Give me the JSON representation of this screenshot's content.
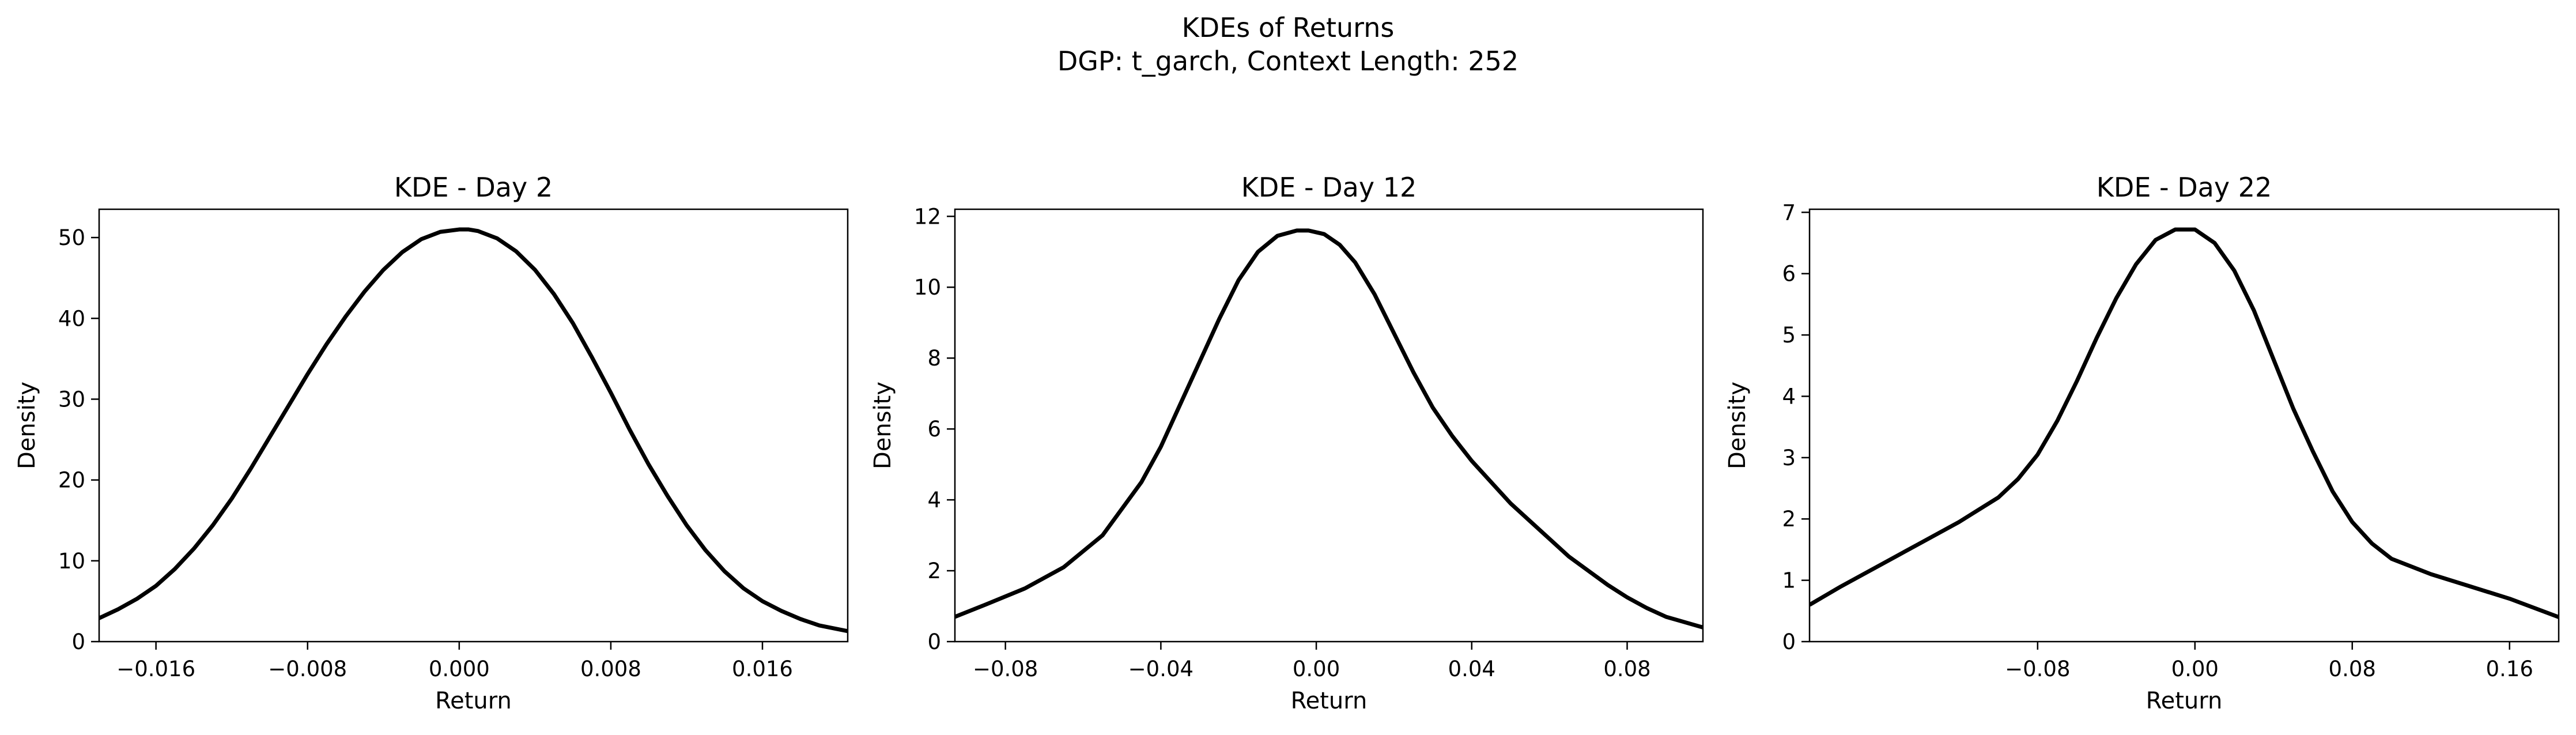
{
  "figure": {
    "title_line1": "KDEs of Returns",
    "title_line2": "DGP: t_garch, Context Length: 252"
  },
  "chart_data": [
    {
      "type": "line",
      "title": "KDE - Day 2",
      "xlabel": "Return",
      "ylabel": "Density",
      "xlim": [
        -0.019,
        0.0205
      ],
      "ylim": [
        0,
        53.5
      ],
      "xticks": [
        -0.016,
        -0.008,
        0.0,
        0.008,
        0.016
      ],
      "xtick_labels": [
        "−0.016",
        "−0.008",
        "0.000",
        "0.008",
        "0.016"
      ],
      "yticks": [
        0,
        10,
        20,
        30,
        40,
        50
      ],
      "ytick_labels": [
        "0",
        "10",
        "20",
        "30",
        "40",
        "50"
      ],
      "line_color": "#000000",
      "grid": false,
      "series": [
        {
          "x": [
            -0.019,
            -0.018,
            -0.017,
            -0.016,
            -0.015,
            -0.014,
            -0.013,
            -0.012,
            -0.011,
            -0.01,
            -0.009,
            -0.008,
            -0.007,
            -0.006,
            -0.005,
            -0.004,
            -0.003,
            -0.002,
            -0.001,
            0.0,
            0.0005,
            0.001,
            0.002,
            0.003,
            0.004,
            0.005,
            0.006,
            0.007,
            0.008,
            0.009,
            0.01,
            0.011,
            0.012,
            0.013,
            0.014,
            0.015,
            0.016,
            0.017,
            0.018,
            0.019,
            0.0205
          ],
          "y": [
            2.9,
            4.0,
            5.3,
            6.9,
            9.0,
            11.5,
            14.4,
            17.7,
            21.4,
            25.3,
            29.2,
            33.1,
            36.8,
            40.2,
            43.3,
            46.0,
            48.2,
            49.8,
            50.7,
            51.0,
            51.0,
            50.8,
            49.9,
            48.3,
            46.0,
            43.0,
            39.4,
            35.2,
            30.8,
            26.2,
            21.9,
            18.0,
            14.4,
            11.3,
            8.7,
            6.6,
            5.0,
            3.8,
            2.8,
            2.0,
            1.3
          ]
        }
      ]
    },
    {
      "type": "line",
      "title": "KDE - Day 12",
      "xlabel": "Return",
      "ylabel": "Density",
      "xlim": [
        -0.093,
        0.0995
      ],
      "ylim": [
        0,
        12.2
      ],
      "xticks": [
        -0.08,
        -0.04,
        0.0,
        0.04,
        0.08
      ],
      "xtick_labels": [
        "−0.08",
        "−0.04",
        "0.00",
        "0.04",
        "0.08"
      ],
      "yticks": [
        0,
        2,
        4,
        6,
        8,
        10,
        12
      ],
      "ytick_labels": [
        "0",
        "2",
        "4",
        "6",
        "8",
        "10",
        "12"
      ],
      "line_color": "#000000",
      "grid": false,
      "series": [
        {
          "x": [
            -0.093,
            -0.085,
            -0.075,
            -0.065,
            -0.055,
            -0.045,
            -0.04,
            -0.035,
            -0.03,
            -0.025,
            -0.02,
            -0.015,
            -0.01,
            -0.005,
            -0.002,
            0.002,
            0.006,
            0.01,
            0.015,
            0.02,
            0.025,
            0.03,
            0.035,
            0.04,
            0.045,
            0.05,
            0.055,
            0.06,
            0.065,
            0.07,
            0.075,
            0.08,
            0.085,
            0.09,
            0.0995
          ],
          "y": [
            0.7,
            1.05,
            1.5,
            2.1,
            3.0,
            4.5,
            5.5,
            6.7,
            7.9,
            9.1,
            10.2,
            11.0,
            11.45,
            11.6,
            11.6,
            11.5,
            11.2,
            10.7,
            9.8,
            8.7,
            7.6,
            6.6,
            5.8,
            5.1,
            4.5,
            3.9,
            3.4,
            2.9,
            2.4,
            2.0,
            1.6,
            1.25,
            0.95,
            0.7,
            0.4
          ]
        }
      ]
    },
    {
      "type": "line",
      "title": "KDE - Day 22",
      "xlabel": "Return",
      "ylabel": "Density",
      "xlim": [
        -0.196,
        0.185
      ],
      "ylim": [
        0,
        7.05
      ],
      "xticks": [
        -0.08,
        0.0,
        0.08,
        0.16
      ],
      "xtick_labels": [
        "−0.08",
        "0.00",
        "0.08",
        "0.16"
      ],
      "yticks": [
        0,
        1,
        2,
        3,
        4,
        5,
        6,
        7
      ],
      "ytick_labels": [
        "0",
        "1",
        "2",
        "3",
        "4",
        "5",
        "6",
        "7"
      ],
      "line_color": "#000000",
      "grid": false,
      "series": [
        {
          "x": [
            -0.196,
            -0.18,
            -0.16,
            -0.14,
            -0.12,
            -0.1,
            -0.09,
            -0.08,
            -0.07,
            -0.06,
            -0.05,
            -0.04,
            -0.03,
            -0.02,
            -0.01,
            0.0,
            0.01,
            0.02,
            0.03,
            0.04,
            0.05,
            0.06,
            0.07,
            0.08,
            0.09,
            0.1,
            0.12,
            0.14,
            0.16,
            0.185
          ],
          "y": [
            0.6,
            0.9,
            1.25,
            1.6,
            1.95,
            2.35,
            2.65,
            3.05,
            3.6,
            4.25,
            4.95,
            5.6,
            6.15,
            6.55,
            6.72,
            6.72,
            6.5,
            6.05,
            5.4,
            4.6,
            3.8,
            3.1,
            2.45,
            1.95,
            1.6,
            1.35,
            1.1,
            0.9,
            0.7,
            0.4
          ]
        }
      ]
    }
  ]
}
